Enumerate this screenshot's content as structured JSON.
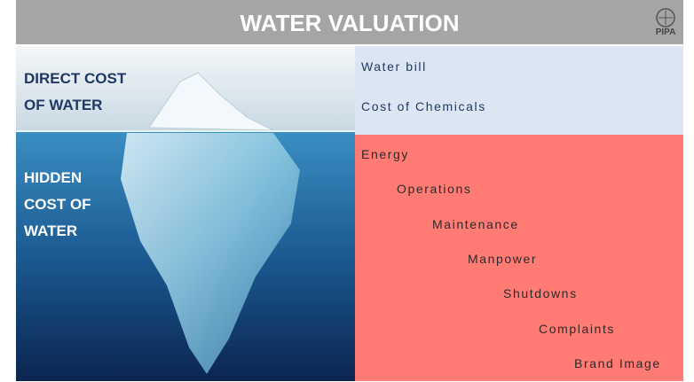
{
  "header": {
    "title": "WATER VALUATION",
    "logo": "PIPA"
  },
  "image_labels": {
    "direct": [
      "DIRECT COST",
      "OF WATER"
    ],
    "hidden": [
      "HIDDEN",
      "COST OF",
      "WATER"
    ]
  },
  "direct_costs": [
    "Water bill",
    "Cost of Chemicals"
  ],
  "hidden_costs": [
    "Energy",
    "Operations",
    "Maintenance",
    "Manpower",
    "Shutdowns",
    "Complaints",
    "Brand Image"
  ]
}
